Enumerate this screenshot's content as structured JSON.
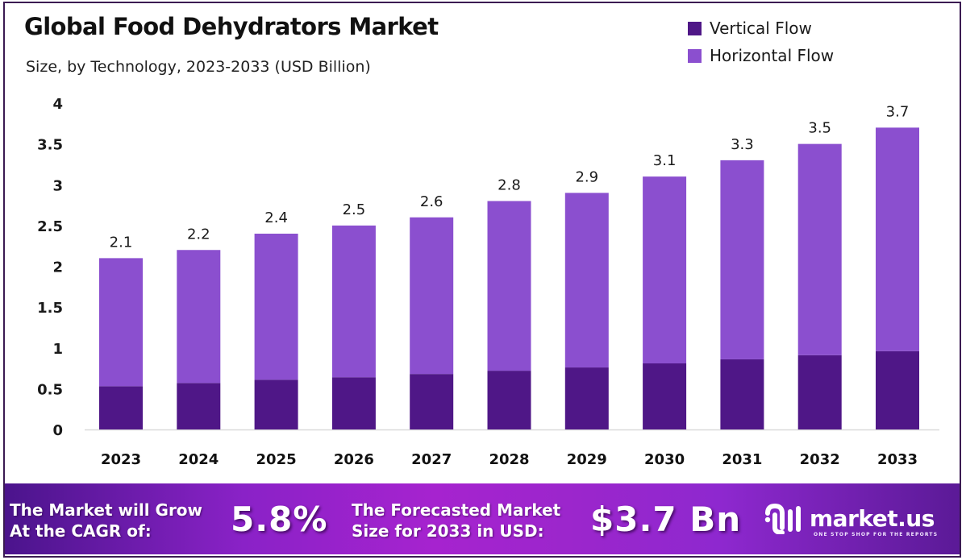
{
  "header": {
    "title": "Global Food Dehydrators Market",
    "subtitle": "Size, by Technology, 2023-2033 (USD Billion)"
  },
  "legend": [
    {
      "label": "Vertical Flow",
      "color": "#4f1787"
    },
    {
      "label": "Horizontal Flow",
      "color": "#8b4fcf"
    }
  ],
  "chart_data": {
    "type": "bar",
    "stacked": true,
    "title": "Global Food Dehydrators Market",
    "subtitle": "Size, by Technology, 2023-2033 (USD Billion)",
    "xlabel": "",
    "ylabel": "",
    "ylim": [
      0,
      4
    ],
    "yticks": [
      0,
      0.5,
      1,
      1.5,
      2,
      2.5,
      3,
      3.5,
      4
    ],
    "ytick_labels": [
      "0",
      "0.5",
      "1",
      "1.5",
      "2",
      "2.5",
      "3",
      "3.5",
      "4"
    ],
    "categories": [
      "2023",
      "2024",
      "2025",
      "2026",
      "2027",
      "2028",
      "2029",
      "2030",
      "2031",
      "2032",
      "2033"
    ],
    "series": [
      {
        "name": "Vertical Flow",
        "color": "#4f1787",
        "values": [
          0.53,
          0.57,
          0.61,
          0.64,
          0.68,
          0.72,
          0.76,
          0.81,
          0.86,
          0.91,
          0.96
        ]
      },
      {
        "name": "Horizontal Flow",
        "color": "#8b4fcf",
        "values": [
          1.57,
          1.63,
          1.79,
          1.86,
          1.92,
          2.08,
          2.14,
          2.29,
          2.44,
          2.59,
          2.74
        ]
      }
    ],
    "totals": [
      2.1,
      2.2,
      2.4,
      2.5,
      2.6,
      2.8,
      2.9,
      3.1,
      3.3,
      3.5,
      3.7
    ],
    "total_labels": [
      "2.1",
      "2.2",
      "2.4",
      "2.5",
      "2.6",
      "2.8",
      "2.9",
      "3.1",
      "3.3",
      "3.5",
      "3.7"
    ],
    "grid": false,
    "legend_position": "top-right"
  },
  "banner": {
    "cagr_label_line1": "The Market will Grow",
    "cagr_label_line2": "At the CAGR of:",
    "cagr_value": "5.8%",
    "forecast_label_line1": "The Forecasted Market",
    "forecast_label_line2": "Size for 2033 in USD:",
    "forecast_value": "$3.7 Bn",
    "logo_text": "market.us",
    "logo_tagline": "ONE STOP SHOP FOR THE REPORTS"
  }
}
